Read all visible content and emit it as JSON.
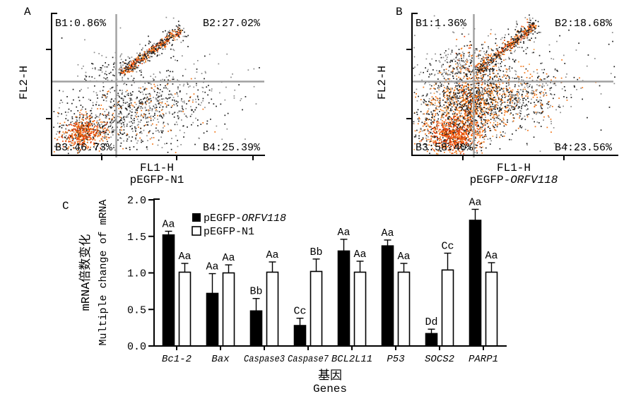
{
  "figure": {
    "panel_a": {
      "label": "A",
      "y_axis": "FL2-H",
      "x_axis": "FL1-H",
      "caption": "pEGFP-N1",
      "q1": "B1:0.86%",
      "q2": "B2:27.02%",
      "q3": "B3:46.73%",
      "q4": "B4:25.39%"
    },
    "panel_b": {
      "label": "B",
      "y_axis": "FL2-H",
      "x_axis": "FL1-H",
      "caption_prefix": "pEGFP-",
      "caption_italic": "ORFV118",
      "q1": "B1:1.36%",
      "q2": "B2:18.68%",
      "q3": "B3:58.40%",
      "q4": "B4:23.56%"
    },
    "panel_c": {
      "label": "C",
      "y_label_cn": "mRNA倍数变化",
      "y_label_en": "Multiple change of mRNA",
      "x_label_cn": "基因",
      "x_label_en": "Genes",
      "legend": {
        "series1_prefix": "pEGFP-",
        "series1_italic": "ORFV118",
        "series2": "pEGFP-N1"
      }
    }
  },
  "chart_data": [
    {
      "type": "scatter",
      "panel": "A",
      "title": "pEGFP-N1",
      "xlabel": "FL1-H",
      "ylabel": "FL2-H",
      "style": "flow-cytometry density dot plot with quadrant gate",
      "quadrants": {
        "B1": 0.86,
        "B2": 27.02,
        "B3": 46.73,
        "B4": 25.39
      }
    },
    {
      "type": "scatter",
      "panel": "B",
      "title": "pEGFP-ORFV118",
      "xlabel": "FL1-H",
      "ylabel": "FL2-H",
      "style": "flow-cytometry density dot plot with quadrant gate",
      "quadrants": {
        "B1": 1.36,
        "B2": 18.68,
        "B3": 58.4,
        "B4": 23.56
      }
    },
    {
      "type": "bar",
      "panel": "C",
      "categories": [
        "Bc1-2",
        "Bax",
        "Caspase3",
        "Caspase7",
        "BCL2L11",
        "P53",
        "SOCS2",
        "PARP1"
      ],
      "series": [
        {
          "name": "pEGFP-ORFV118",
          "fill": "#000000",
          "values": [
            1.52,
            0.72,
            0.48,
            0.28,
            1.3,
            1.37,
            0.17,
            1.72
          ],
          "errors": [
            0.05,
            0.27,
            0.17,
            0.1,
            0.16,
            0.08,
            0.06,
            0.15
          ],
          "letters": [
            "Aa",
            "Aa",
            "Bb",
            "Cc",
            "Aa",
            "Aa",
            "Dd",
            "Aa"
          ]
        },
        {
          "name": "pEGFP-N1",
          "fill": "#ffffff",
          "values": [
            1.01,
            1.0,
            1.01,
            1.02,
            1.01,
            1.01,
            1.04,
            1.01
          ],
          "errors": [
            0.12,
            0.11,
            0.14,
            0.17,
            0.15,
            0.12,
            0.23,
            0.13
          ],
          "letters": [
            "Aa",
            "Aa",
            "Aa",
            "Bb",
            "Aa",
            "Aa",
            "Cc",
            "Aa"
          ]
        }
      ],
      "ylabel": "mRNA倍数变化 / Multiple change of mRNA",
      "xlabel": "基因 / Genes",
      "ylim": [
        0,
        2.0
      ],
      "yticks": [
        0.0,
        0.5,
        1.0,
        1.5,
        2.0
      ],
      "legend_position": "inside top-left",
      "grid": false,
      "error_bars": "upper only, capped"
    }
  ],
  "colors": {
    "axis": "#000000",
    "quadrant_line": "#a0a0a0",
    "dot_dark": "#1c1c1c",
    "dot_gray": "#8a8a8a",
    "dot_orange": "#f2700e",
    "dot_hot": "#e8430a",
    "dot_light": "#f59d42",
    "bar_series1": "#000000",
    "bar_series2": "#ffffff"
  }
}
